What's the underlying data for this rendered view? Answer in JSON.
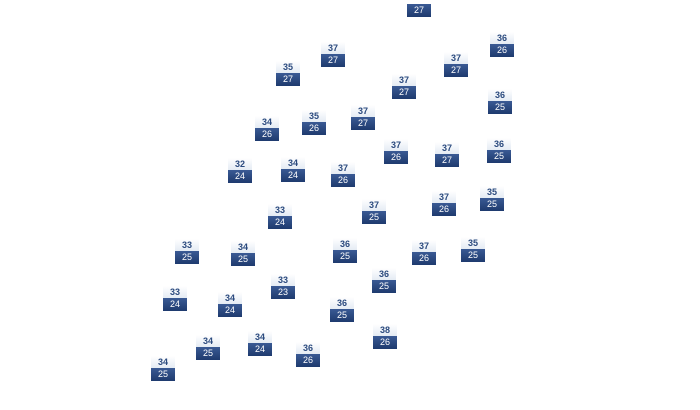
{
  "markers": [
    {
      "low": 27
    },
    {
      "high": 36,
      "low": 26
    },
    {
      "high": 37,
      "low": 27
    },
    {
      "high": 37,
      "low": 27
    },
    {
      "high": 35,
      "low": 27
    },
    {
      "high": 37,
      "low": 27
    },
    {
      "high": 36,
      "low": 25
    },
    {
      "high": 35,
      "low": 26
    },
    {
      "high": 37,
      "low": 27
    },
    {
      "high": 34,
      "low": 26
    },
    {
      "high": 36,
      "low": 25
    },
    {
      "high": 37,
      "low": 26
    },
    {
      "high": 37,
      "low": 27
    },
    {
      "high": 32,
      "low": 24
    },
    {
      "high": 34,
      "low": 24
    },
    {
      "high": 37,
      "low": 26
    },
    {
      "high": 37,
      "low": 26
    },
    {
      "high": 35,
      "low": 25
    },
    {
      "high": 37,
      "low": 25
    },
    {
      "high": 33,
      "low": 24
    },
    {
      "high": 33,
      "low": 25
    },
    {
      "high": 36,
      "low": 25
    },
    {
      "high": 34,
      "low": 25
    },
    {
      "high": 37,
      "low": 26
    },
    {
      "high": 35,
      "low": 25
    },
    {
      "high": 36,
      "low": 25
    },
    {
      "high": 33,
      "low": 23
    },
    {
      "high": 33,
      "low": 24
    },
    {
      "high": 34,
      "low": 24
    },
    {
      "high": 36,
      "low": 25
    },
    {
      "high": 38,
      "low": 26
    },
    {
      "high": 34,
      "low": 25
    },
    {
      "high": 34,
      "low": 24
    },
    {
      "high": 36,
      "low": 26
    },
    {
      "high": 34,
      "low": 25
    }
  ]
}
